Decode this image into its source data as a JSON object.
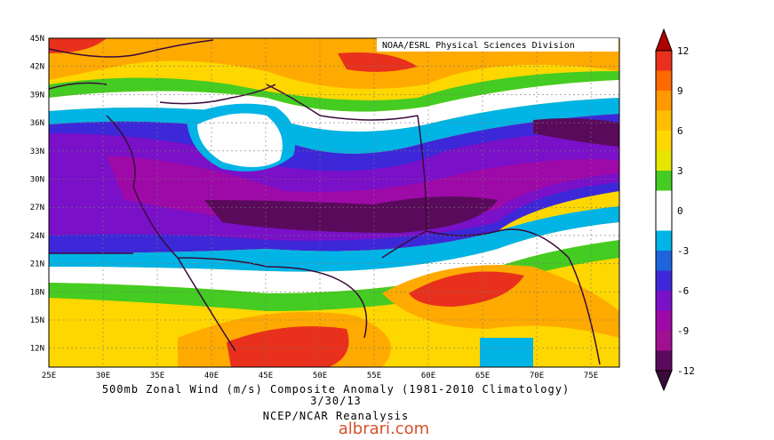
{
  "header": {
    "credit": "NOAA/ESRL Physical Sciences Division"
  },
  "map": {
    "x_ticks": [
      "25E",
      "30E",
      "35E",
      "40E",
      "45E",
      "50E",
      "55E",
      "60E",
      "65E",
      "70E",
      "75E"
    ],
    "y_ticks": [
      "45N",
      "42N",
      "39N",
      "36N",
      "33N",
      "30N",
      "27N",
      "24N",
      "21N",
      "18N",
      "15N",
      "12N"
    ]
  },
  "colorbar": {
    "labels": [
      "12",
      "9",
      "6",
      "3",
      "0",
      "-3",
      "-6",
      "-9",
      "-12"
    ]
  },
  "caption": {
    "title": "500mb Zonal Wind (m/s) Composite Anomaly (1981-2010 Climatology)",
    "date": "3/30/13",
    "source": "NCEP/NCAR Reanalysis"
  },
  "watermark": "albrari.com"
}
